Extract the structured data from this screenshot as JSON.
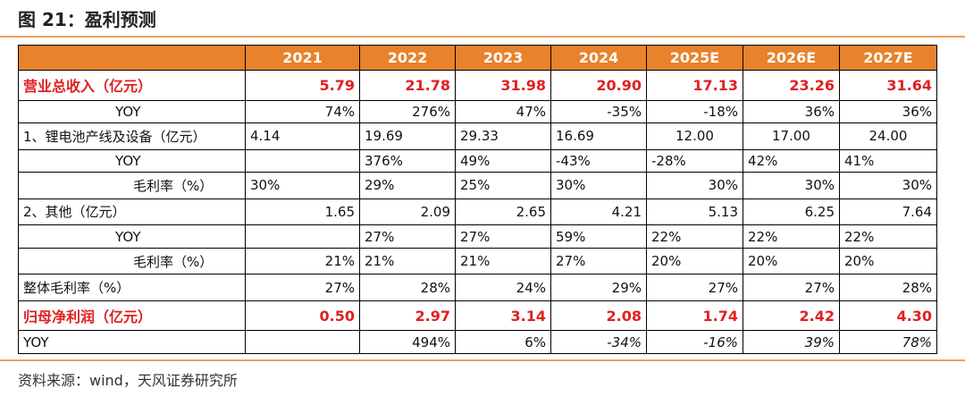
{
  "title": "图 21：盈利预测",
  "source": "资料来源：wind，天风证券研究所",
  "header": {
    "label": "",
    "years": [
      "2021",
      "2022",
      "2023",
      "2024",
      "2025E",
      "2026E",
      "2027E"
    ]
  },
  "rows": [
    {
      "label": "营业总收入（亿元）",
      "values": [
        "5.79",
        "21.78",
        "31.98",
        "20.90",
        "17.13",
        "23.26",
        "31.64"
      ]
    },
    {
      "label": "YOY",
      "values": [
        "74%",
        "276%",
        "47%",
        "-35%",
        "-18%",
        "36%",
        "36%"
      ]
    },
    {
      "label": "1、锂电池产线及设备（亿元）",
      "values": [
        "4.14",
        "19.69",
        "29.33",
        "16.69",
        "12.00",
        "17.00",
        "24.00"
      ]
    },
    {
      "label": "YOY",
      "values": [
        "",
        "376%",
        "49%",
        "-43%",
        "-28%",
        "42%",
        "41%"
      ]
    },
    {
      "label": "毛利率（%）",
      "values": [
        "30%",
        "29%",
        "25%",
        "30%",
        "30%",
        "30%",
        "30%"
      ]
    },
    {
      "label": "2、其他（亿元）",
      "values": [
        "1.65",
        "2.09",
        "2.65",
        "4.21",
        "5.13",
        "6.25",
        "7.64"
      ]
    },
    {
      "label": "YOY",
      "values": [
        "",
        "27%",
        "27%",
        "59%",
        "22%",
        "22%",
        "22%"
      ]
    },
    {
      "label": "毛利率（%）",
      "values": [
        "21%",
        "21%",
        "21%",
        "27%",
        "20%",
        "20%",
        "20%"
      ]
    },
    {
      "label": "整体毛利率（%）",
      "values": [
        "27%",
        "28%",
        "24%",
        "29%",
        "27%",
        "27%",
        "28%"
      ]
    },
    {
      "label": "归母净利润（亿元）",
      "values": [
        "0.50",
        "2.97",
        "3.14",
        "2.08",
        "1.74",
        "2.42",
        "4.30"
      ]
    },
    {
      "label": "YOY",
      "values": [
        "",
        "494%",
        "6%",
        "-34%",
        "-16%",
        "39%",
        "78%"
      ]
    }
  ],
  "colors": {
    "header_bg": "#e8822c",
    "highlight_text": "#e02020",
    "rule": "#e9a060"
  }
}
